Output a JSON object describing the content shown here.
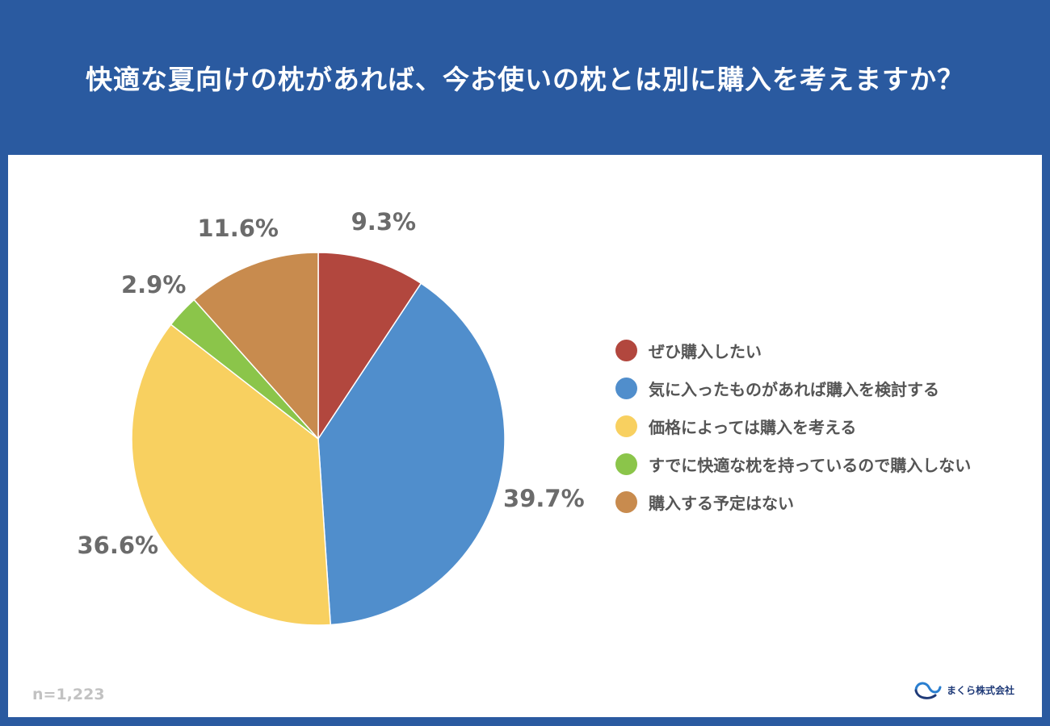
{
  "title": "快適な夏向けの枕があれば、今お使いの枕とは別に購入を考えますか？",
  "sample_size": "n=1,223",
  "company": "まくら株式会社",
  "logo_icon": "makura-logo-icon",
  "chart_data": {
    "type": "pie",
    "categories": [
      "ぜひ購入したい",
      "気に入ったものがあれば購入を検討する",
      "価格によっては購入を考える",
      "すでに快適な枕を持っているので購入しない",
      "購入する予定はない"
    ],
    "values": [
      9.3,
      39.7,
      36.6,
      2.9,
      11.6
    ],
    "labels": [
      "9.3%",
      "39.7%",
      "36.6%",
      "2.9%",
      "11.6%"
    ],
    "colors": [
      "#b2473e",
      "#508ecc",
      "#f8d060",
      "#8bc54a",
      "#c88b4e"
    ],
    "start_angle": "12 o'clock, clockwise",
    "legend_position": "right"
  }
}
